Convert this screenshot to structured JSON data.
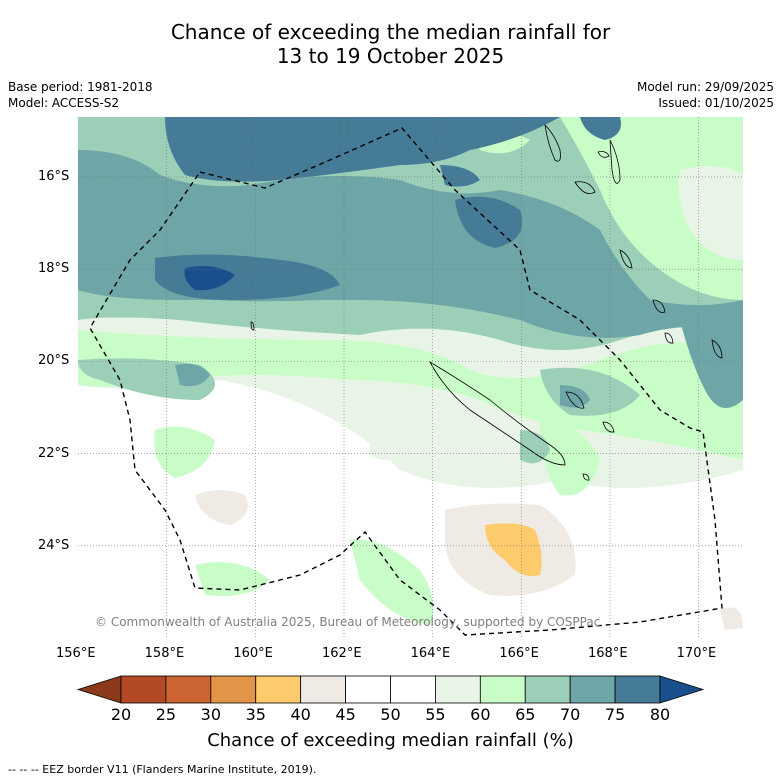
{
  "header": {
    "title_line1": "Chance of exceeding the median rainfall for",
    "title_line2": "13 to 19 October 2025",
    "base_period": "Base period: 1981-2018",
    "model": "Model: ACCESS-S2",
    "model_run": "Model run: 29/09/2025",
    "issued": "Issued: 01/10/2025"
  },
  "map": {
    "lat_labels": [
      "16°S",
      "18°S",
      "20°S",
      "22°S",
      "24°S"
    ],
    "lon_labels": [
      "156°E",
      "158°E",
      "160°E",
      "162°E",
      "164°E",
      "166°E",
      "168°E",
      "170°E"
    ],
    "lat_values": [
      -16,
      -18,
      -20,
      -22,
      -24
    ],
    "lon_values": [
      156,
      158,
      160,
      162,
      164,
      166,
      168,
      170
    ],
    "lon_range": [
      156,
      171
    ],
    "lat_range": [
      -14.7,
      -26.0
    ],
    "copyright": "© Commonwealth of Australia 2025, Bureau of Meteorology, supported by COSPPac"
  },
  "colorbar": {
    "ticks": [
      "20",
      "25",
      "30",
      "35",
      "40",
      "45",
      "50",
      "55",
      "60",
      "65",
      "70",
      "75",
      "80"
    ],
    "colors": [
      "#8c3a1c",
      "#b34a23",
      "#cd6532",
      "#e29447",
      "#fdcb6b",
      "#efebe4",
      "#ffffff",
      "#ffffff",
      "#e8f5e6",
      "#c8fdc8",
      "#9ccfb7",
      "#6ea5a6",
      "#457b96",
      "#184f8c"
    ],
    "title": "Chance of exceeding median rainfall (%)"
  },
  "footer": {
    "legend": "--  --  -- EEZ border V11 (Flanders Marine Institute, 2019)."
  }
}
